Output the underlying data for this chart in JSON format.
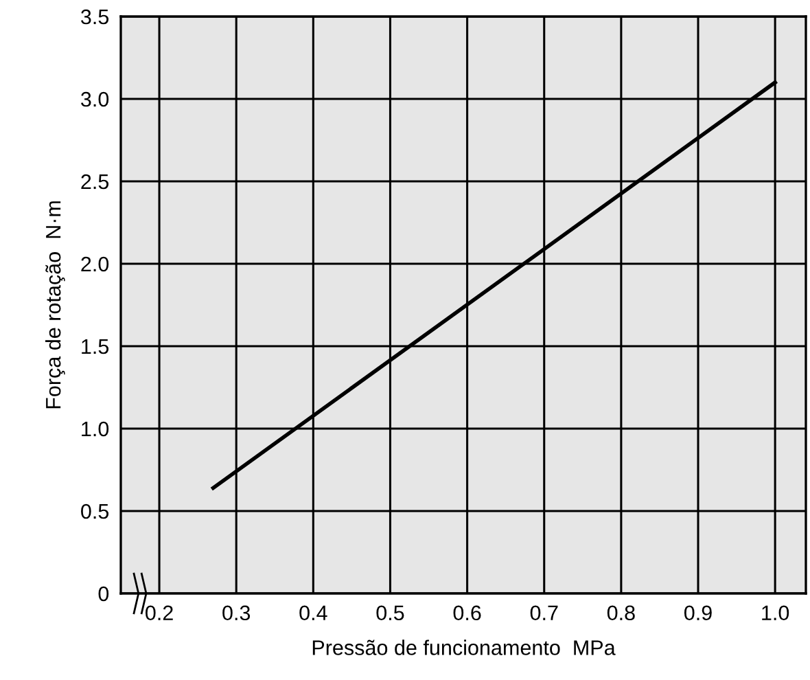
{
  "chart_data": {
    "type": "line",
    "xlabel": "Pressão de funcionamento  MPa",
    "ylabel": "Força de rotação  N·m",
    "x": [
      0.27,
      1.0
    ],
    "series": [
      {
        "color": "#000000",
        "values": [
          0.64,
          3.1
        ]
      }
    ],
    "xlim": [
      0.15,
      1.04
    ],
    "ylim": [
      0,
      3.5
    ],
    "xticks": [
      {
        "value": 0.2,
        "label": "0.2"
      },
      {
        "value": 0.3,
        "label": "0.3"
      },
      {
        "value": 0.4,
        "label": "0.4"
      },
      {
        "value": 0.5,
        "label": "0.5"
      },
      {
        "value": 0.6,
        "label": "0.6"
      },
      {
        "value": 0.7,
        "label": "0.7"
      },
      {
        "value": 0.8,
        "label": "0.8"
      },
      {
        "value": 0.9,
        "label": "0.9"
      },
      {
        "value": 1.0,
        "label": "1.0"
      }
    ],
    "yticks": [
      {
        "value": 0,
        "label": "0"
      },
      {
        "value": 0.5,
        "label": "0.5"
      },
      {
        "value": 1.0,
        "label": "1.0"
      },
      {
        "value": 1.5,
        "label": "1.5"
      },
      {
        "value": 2.0,
        "label": "2.0"
      },
      {
        "value": 2.5,
        "label": "2.5"
      },
      {
        "value": 3.0,
        "label": "3.0"
      },
      {
        "value": 3.5,
        "label": "3.5"
      }
    ],
    "grid": true,
    "marker": "none",
    "line_style": "solid"
  }
}
